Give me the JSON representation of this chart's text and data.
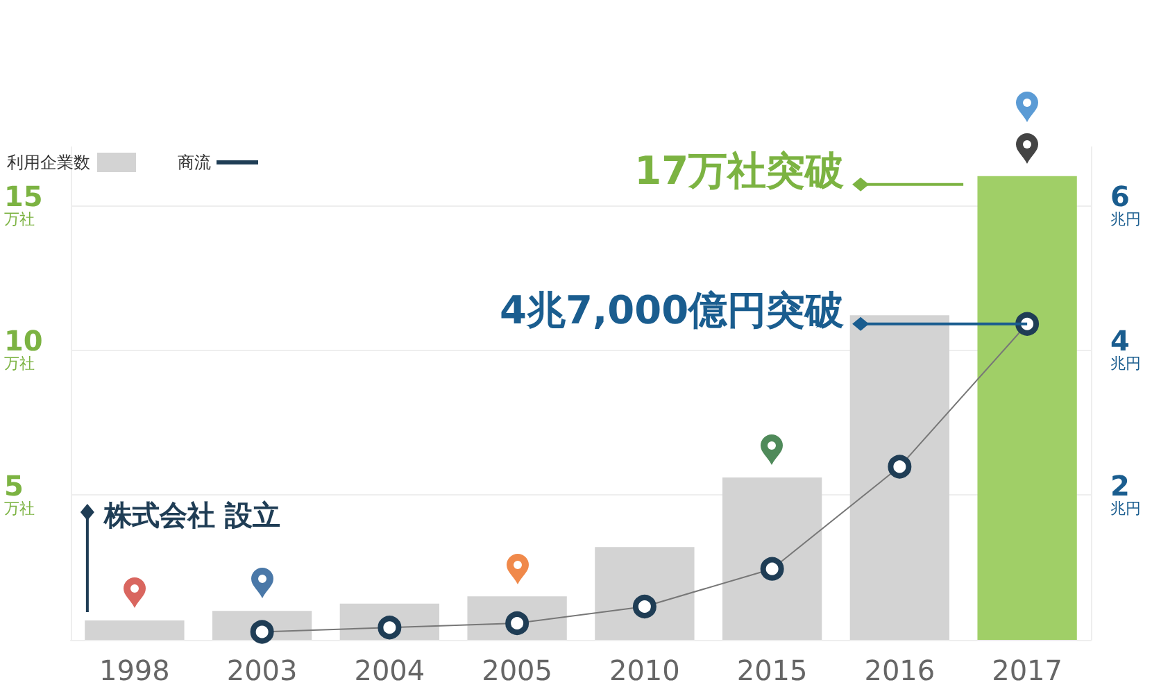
{
  "chart_data": {
    "type": "bar",
    "categories": [
      "1998",
      "2003",
      "2004",
      "2005",
      "2010",
      "2015",
      "2016",
      "2017"
    ],
    "series": [
      {
        "name": "利用企業数",
        "color": "#d3d3d3",
        "colors": [
          "#d3d3d3",
          "#d3d3d3",
          "#d3d3d3",
          "#d3d3d3",
          "#d3d3d3",
          "#d3d3d3",
          "#d3d3d3",
          "#a0cf67"
        ],
        "values": [
          0.67,
          1.0,
          1.25,
          1.5,
          3.2,
          5.6,
          11.2,
          16.0
        ]
      },
      {
        "name": "商流",
        "type": "line",
        "axis": "y2",
        "color": "#777777",
        "values": [
          null,
          0.11,
          0.17,
          0.23,
          0.46,
          0.98,
          2.39,
          4.36
        ]
      }
    ],
    "ylim": [
      0,
      17
    ],
    "yticks": [
      5,
      10,
      15
    ],
    "ylabel": "万社",
    "y2lim": [
      0,
      6.8
    ],
    "y2ticks": [
      2,
      4,
      6
    ],
    "y2label": "兆円",
    "grid": "y",
    "legend": "top left",
    "marker": "circle",
    "line_style": "solid",
    "annotations": [
      "17万社突破",
      "4兆7,000億円突破",
      "株式会社 設立"
    ]
  }
}
